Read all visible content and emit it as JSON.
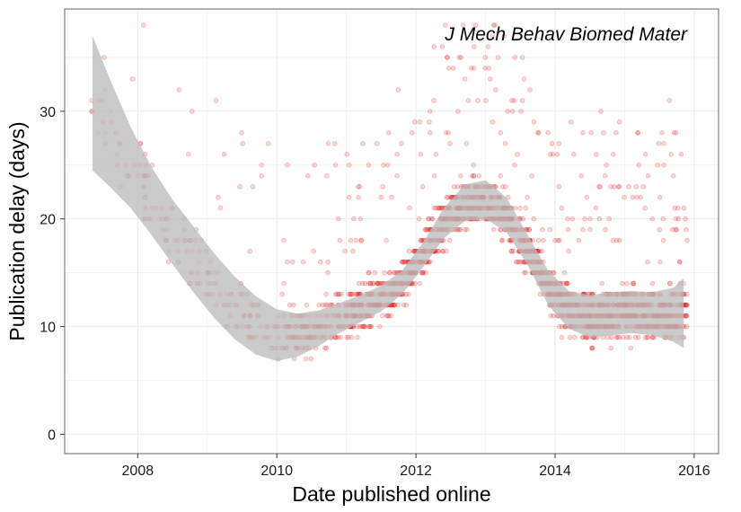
{
  "chart_data": {
    "type": "scatter",
    "title": "J Mech Behav Biomed Mater",
    "xlabel": "Date published online",
    "ylabel": "Publication delay (days)",
    "xlim": [
      2006.95,
      2016.35
    ],
    "ylim": [
      -1.8,
      39.5
    ],
    "x_ticks": [
      2008,
      2010,
      2012,
      2014,
      2016
    ],
    "x_tick_labels": [
      "2008",
      "2010",
      "2012",
      "2014",
      "2016"
    ],
    "y_ticks": [
      0,
      10,
      20,
      30
    ],
    "y_tick_labels": [
      "0",
      "10",
      "20",
      "30"
    ],
    "grid": true,
    "colors": {
      "points": "#e41a1c",
      "ribbon": "#bdbdbd",
      "panel_border": "#7f7f7f",
      "grid": "#ececec"
    },
    "point_alpha": 0.18,
    "smooth_band": {
      "x": [
        2007.35,
        2007.6,
        2007.9,
        2008.2,
        2008.5,
        2008.8,
        2009.1,
        2009.4,
        2009.7,
        2010.0,
        2010.3,
        2010.6,
        2010.9,
        2011.2,
        2011.5,
        2011.8,
        2012.1,
        2012.4,
        2012.7,
        2013.0,
        2013.3,
        2013.6,
        2013.9,
        2014.2,
        2014.5,
        2014.8,
        2015.1,
        2015.4,
        2015.7,
        2015.85
      ],
      "lower": [
        24.5,
        23.0,
        21.0,
        18.5,
        15.8,
        13.2,
        10.8,
        8.8,
        7.4,
        6.8,
        7.2,
        8.2,
        9.4,
        10.4,
        11.4,
        13.0,
        15.5,
        18.2,
        19.8,
        20.0,
        18.8,
        15.8,
        12.0,
        9.8,
        9.0,
        9.2,
        9.4,
        9.2,
        8.6,
        8.0
      ],
      "upper": [
        37.0,
        33.0,
        28.5,
        24.8,
        21.8,
        19.3,
        16.8,
        14.6,
        12.8,
        11.6,
        11.2,
        11.5,
        12.2,
        12.9,
        13.8,
        15.2,
        17.8,
        21.0,
        23.2,
        23.6,
        22.0,
        18.6,
        15.2,
        13.3,
        12.9,
        13.2,
        13.3,
        13.2,
        13.6,
        14.5
      ]
    }
  }
}
